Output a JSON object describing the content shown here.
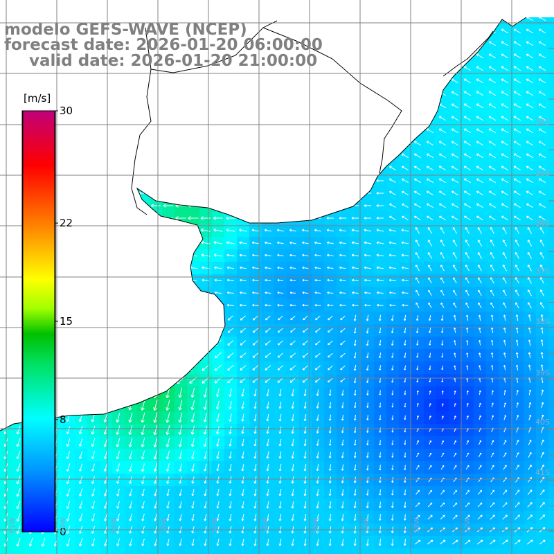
{
  "title": {
    "line1": "modelo GEFS-WAVE (NCEP)",
    "line2": "forecast date: 2026-01-20 06:00:00",
    "line3": "valid date: 2026-01-20 21:00:00"
  },
  "colorbar": {
    "unit": "[m/s]",
    "ticks": [
      "30",
      "22",
      "15",
      "8",
      "0"
    ],
    "tick_values": [
      30,
      22,
      15,
      8,
      0
    ],
    "range": [
      0,
      30
    ],
    "colors": [
      "#0000ff",
      "#0080ff",
      "#00ffff",
      "#00ff80",
      "#00d000",
      "#80ff00",
      "#ffff00",
      "#ffa000",
      "#ff4000",
      "#ff0000",
      "#e00060",
      "#c00080"
    ]
  },
  "map": {
    "lat_labels": [
      "34S",
      "35S",
      "36S",
      "37S",
      "38S",
      "39S",
      "40S",
      "41S"
    ],
    "lat_values": [
      34,
      35,
      36,
      37,
      38,
      39,
      40,
      41
    ],
    "lon_labels": [
      "61W",
      "60W",
      "59W",
      "58W",
      "57W",
      "56W",
      "55W",
      "54W",
      "53W",
      "52W"
    ],
    "grid_color": "#808080",
    "land_color": "#ffffff",
    "arrow_color": "#ffffff"
  }
}
